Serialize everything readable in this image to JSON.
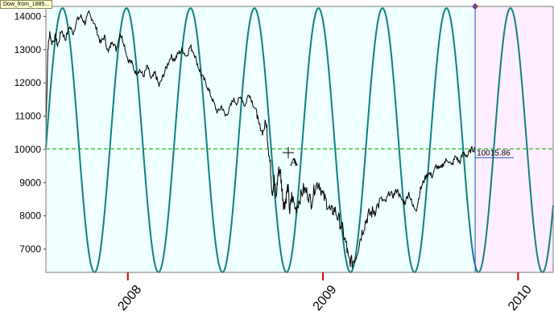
{
  "tag_label": "Dow_from_1885...",
  "chart_data": {
    "type": "line",
    "title": "",
    "xlabel": "",
    "ylabel": "",
    "x_ticks": [
      2008,
      2009,
      2010
    ],
    "y_ticks": [
      7000,
      8000,
      9000,
      10000,
      11000,
      12000,
      13000,
      14000
    ],
    "xlim": [
      2007.58,
      2010.18
    ],
    "ylim": [
      6300,
      14300
    ],
    "grid": false,
    "forecast_start": 2009.78,
    "current_value": 10015.86,
    "current_value_label": "10015.86",
    "crosshair_label": "A",
    "colors": {
      "background": "#f0ffff",
      "forecast_background": "#ffeeff",
      "price_line": "#000000",
      "cycle_line": "#118080",
      "level_line": "#00a000",
      "cursor_line": "#2050c0",
      "tick_mark": "#cc0000"
    },
    "series": [
      {
        "values": [
          [
            2007.58,
            10500
          ],
          [
            2007.59,
            13000
          ],
          [
            2007.6,
            13500
          ],
          [
            2007.61,
            13200
          ],
          [
            2007.63,
            13400
          ],
          [
            2007.64,
            13100
          ],
          [
            2007.66,
            13600
          ],
          [
            2007.68,
            13300
          ],
          [
            2007.7,
            13700
          ],
          [
            2007.72,
            13500
          ],
          [
            2007.74,
            13900
          ],
          [
            2007.76,
            14000
          ],
          [
            2007.78,
            13800
          ],
          [
            2007.8,
            14100
          ],
          [
            2007.82,
            13900
          ],
          [
            2007.84,
            13600
          ],
          [
            2007.86,
            13200
          ],
          [
            2007.88,
            13400
          ],
          [
            2007.9,
            12900
          ],
          [
            2007.92,
            13300
          ],
          [
            2007.94,
            13000
          ],
          [
            2007.96,
            13500
          ],
          [
            2007.98,
            13200
          ],
          [
            2008.0,
            12700
          ],
          [
            2008.02,
            12600
          ],
          [
            2008.04,
            12300
          ],
          [
            2008.06,
            12400
          ],
          [
            2008.08,
            12200
          ],
          [
            2008.1,
            12500
          ],
          [
            2008.12,
            12100
          ],
          [
            2008.14,
            12300
          ],
          [
            2008.16,
            11900
          ],
          [
            2008.18,
            12200
          ],
          [
            2008.2,
            12500
          ],
          [
            2008.22,
            12800
          ],
          [
            2008.24,
            12700
          ],
          [
            2008.26,
            12900
          ],
          [
            2008.28,
            13000
          ],
          [
            2008.3,
            12800
          ],
          [
            2008.32,
            13100
          ],
          [
            2008.34,
            12900
          ],
          [
            2008.36,
            12500
          ],
          [
            2008.38,
            12200
          ],
          [
            2008.4,
            12000
          ],
          [
            2008.42,
            11700
          ],
          [
            2008.44,
            11400
          ],
          [
            2008.46,
            11100
          ],
          [
            2008.48,
            11300
          ],
          [
            2008.5,
            11000
          ],
          [
            2008.52,
            11200
          ],
          [
            2008.54,
            11500
          ],
          [
            2008.56,
            11400
          ],
          [
            2008.58,
            11600
          ],
          [
            2008.6,
            11300
          ],
          [
            2008.62,
            11700
          ],
          [
            2008.64,
            11400
          ],
          [
            2008.66,
            11100
          ],
          [
            2008.67,
            10800
          ],
          [
            2008.69,
            10500
          ],
          [
            2008.71,
            10800
          ],
          [
            2008.72,
            10100
          ],
          [
            2008.73,
            9500
          ],
          [
            2008.74,
            8700
          ],
          [
            2008.75,
            9100
          ],
          [
            2008.76,
            8500
          ],
          [
            2008.77,
            9300
          ],
          [
            2008.78,
            9400
          ],
          [
            2008.79,
            8800
          ],
          [
            2008.8,
            8300
          ],
          [
            2008.81,
            8500
          ],
          [
            2008.82,
            8900
          ],
          [
            2008.83,
            8100
          ],
          [
            2008.84,
            8600
          ],
          [
            2008.86,
            8200
          ],
          [
            2008.88,
            8500
          ],
          [
            2008.9,
            8800
          ],
          [
            2008.92,
            8700
          ],
          [
            2008.94,
            8400
          ],
          [
            2008.96,
            8900
          ],
          [
            2008.98,
            9000
          ],
          [
            2009.0,
            8600
          ],
          [
            2009.02,
            8400
          ],
          [
            2009.04,
            8100
          ],
          [
            2009.06,
            8200
          ],
          [
            2009.08,
            7900
          ],
          [
            2009.1,
            7600
          ],
          [
            2009.12,
            7100
          ],
          [
            2009.13,
            6700
          ],
          [
            2009.15,
            6600
          ],
          [
            2009.17,
            6800
          ],
          [
            2009.19,
            7300
          ],
          [
            2009.21,
            7700
          ],
          [
            2009.23,
            8000
          ],
          [
            2009.25,
            8100
          ],
          [
            2009.27,
            8200
          ],
          [
            2009.3,
            8500
          ],
          [
            2009.32,
            8400
          ],
          [
            2009.34,
            8700
          ],
          [
            2009.36,
            8600
          ],
          [
            2009.38,
            8800
          ],
          [
            2009.4,
            8500
          ],
          [
            2009.42,
            8400
          ],
          [
            2009.44,
            8700
          ],
          [
            2009.46,
            8300
          ],
          [
            2009.48,
            8200
          ],
          [
            2009.5,
            8800
          ],
          [
            2009.52,
            9100
          ],
          [
            2009.54,
            9300
          ],
          [
            2009.56,
            9200
          ],
          [
            2009.58,
            9500
          ],
          [
            2009.6,
            9400
          ],
          [
            2009.62,
            9600
          ],
          [
            2009.64,
            9700
          ],
          [
            2009.66,
            9500
          ],
          [
            2009.68,
            9800
          ],
          [
            2009.7,
            9600
          ],
          [
            2009.72,
            9900
          ],
          [
            2009.74,
            9800
          ],
          [
            2009.76,
            10000
          ],
          [
            2009.78,
            10015.86
          ]
        ]
      },
      {
        "wave": {
          "min": 6300,
          "max": 14250,
          "period": 0.328,
          "peak_at": 2007.665
        }
      }
    ]
  }
}
